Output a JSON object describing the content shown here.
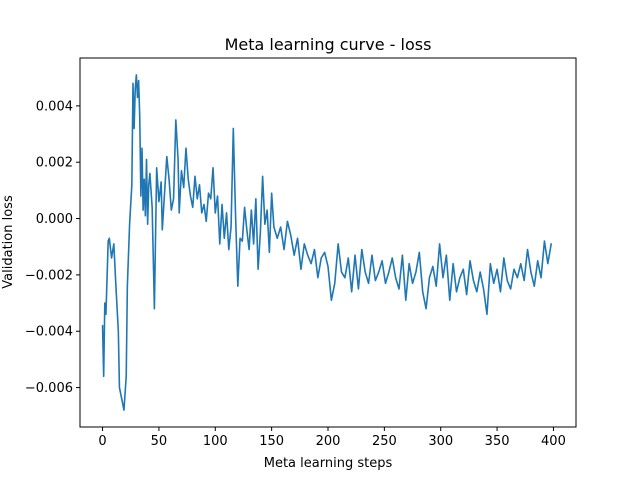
{
  "chart_data": {
    "type": "line",
    "title": "Meta learning curve - loss",
    "xlabel": "Meta learning steps",
    "ylabel": "Validation loss",
    "xlim": [
      -20,
      420
    ],
    "ylim": [
      -0.0074,
      0.0057
    ],
    "xticks": [
      0,
      50,
      100,
      150,
      200,
      250,
      300,
      350,
      400
    ],
    "xtick_labels": [
      "0",
      "50",
      "100",
      "150",
      "200",
      "250",
      "300",
      "350",
      "400"
    ],
    "yticks": [
      -0.006,
      -0.004,
      -0.002,
      0.0,
      0.002,
      0.004
    ],
    "ytick_labels": [
      "−0.006",
      "−0.004",
      "−0.002",
      "0.000",
      "0.002",
      "0.004"
    ],
    "grid": false,
    "series": [
      {
        "color": "#1f77b4",
        "x": [
          0,
          1,
          2,
          3,
          5,
          6,
          8,
          10,
          12,
          14,
          15,
          17,
          19,
          21,
          22,
          24,
          26,
          27,
          28,
          29,
          30,
          31,
          32,
          33,
          34,
          35,
          36,
          37,
          38,
          39,
          40,
          41,
          42,
          44,
          46,
          48,
          50,
          52,
          53,
          55,
          57,
          59,
          61,
          63,
          65,
          67,
          68,
          70,
          72,
          74,
          76,
          78,
          80,
          82,
          84,
          86,
          88,
          90,
          92,
          94,
          96,
          98,
          100,
          102,
          104,
          106,
          108,
          110,
          112,
          114,
          116,
          118,
          120,
          122,
          124,
          126,
          128,
          130,
          132,
          134,
          136,
          138,
          140,
          142,
          144,
          146,
          148,
          150,
          152,
          155,
          158,
          161,
          164,
          167,
          170,
          173,
          176,
          179,
          182,
          185,
          188,
          191,
          194,
          197,
          200,
          203,
          206,
          209,
          212,
          215,
          218,
          221,
          224,
          227,
          230,
          233,
          236,
          239,
          242,
          245,
          248,
          251,
          254,
          257,
          260,
          263,
          266,
          269,
          272,
          275,
          278,
          281,
          284,
          287,
          290,
          293,
          296,
          299,
          302,
          305,
          308,
          311,
          314,
          317,
          320,
          323,
          326,
          329,
          332,
          335,
          338,
          341,
          344,
          347,
          350,
          353,
          356,
          359,
          362,
          365,
          368,
          371,
          374,
          377,
          380,
          383,
          386,
          389,
          392,
          395,
          398
        ],
        "y": [
          -0.0038,
          -0.0056,
          -0.003,
          -0.0034,
          -0.0008,
          -0.0007,
          -0.0014,
          -0.0009,
          -0.0025,
          -0.004,
          -0.006,
          -0.0064,
          -0.0068,
          -0.0056,
          -0.0024,
          -0.0002,
          0.0012,
          0.0048,
          0.0032,
          0.0046,
          0.0051,
          0.0043,
          0.0049,
          0.0036,
          0.0008,
          0.0025,
          0.0003,
          0.0014,
          0.0001,
          0.0021,
          -0.0002,
          0.0012,
          0.0016,
          0.0004,
          -0.0032,
          0.0018,
          0.0006,
          0.0013,
          -0.0004,
          0.0009,
          0.0022,
          0.0014,
          0.0003,
          0.0007,
          0.0035,
          0.0021,
          0.0002,
          0.0017,
          0.0011,
          0.0025,
          0.0014,
          0.0008,
          0.0004,
          0.0015,
          0.0007,
          0.0012,
          0.0002,
          0.0005,
          -0.0001,
          0.0009,
          0.0007,
          0.0018,
          0.0002,
          0.0008,
          -0.0009,
          0.0005,
          -0.0007,
          0.0002,
          -0.0011,
          -0.0003,
          0.0032,
          0.0001,
          -0.0024,
          -0.0007,
          -0.0008,
          0.0004,
          -0.0004,
          -0.0011,
          0.0003,
          -0.0009,
          0.0007,
          -0.0018,
          -0.0005,
          0.0015,
          -0.0002,
          0.0003,
          -0.0012,
          0.0009,
          -0.0003,
          -0.0007,
          -0.0003,
          -0.0011,
          -0.0001,
          -0.0006,
          -0.0013,
          -0.0007,
          -0.0018,
          -0.0009,
          -0.0013,
          -0.0016,
          -0.0011,
          -0.0021,
          -0.0014,
          -0.0012,
          -0.0017,
          -0.0029,
          -0.0023,
          -0.0009,
          -0.0019,
          -0.0021,
          -0.0014,
          -0.0026,
          -0.0013,
          -0.0025,
          -0.0011,
          -0.0019,
          -0.0023,
          -0.0013,
          -0.0022,
          -0.0019,
          -0.0015,
          -0.0023,
          -0.0019,
          -0.0014,
          -0.0021,
          -0.0025,
          -0.0013,
          -0.0029,
          -0.0016,
          -0.0023,
          -0.0019,
          -0.0012,
          -0.0026,
          -0.0032,
          -0.0021,
          -0.0017,
          -0.0024,
          -0.0009,
          -0.0021,
          -0.0013,
          -0.0029,
          -0.0016,
          -0.0026,
          -0.0021,
          -0.0018,
          -0.0027,
          -0.0015,
          -0.0022,
          -0.0026,
          -0.0019,
          -0.0025,
          -0.0034,
          -0.0016,
          -0.0023,
          -0.0018,
          -0.0026,
          -0.0014,
          -0.0022,
          -0.0025,
          -0.0018,
          -0.0021,
          -0.0016,
          -0.0022,
          -0.0011,
          -0.0019,
          -0.0024,
          -0.0015,
          -0.0021,
          -0.0008,
          -0.0016,
          -0.0009
        ]
      }
    ]
  }
}
